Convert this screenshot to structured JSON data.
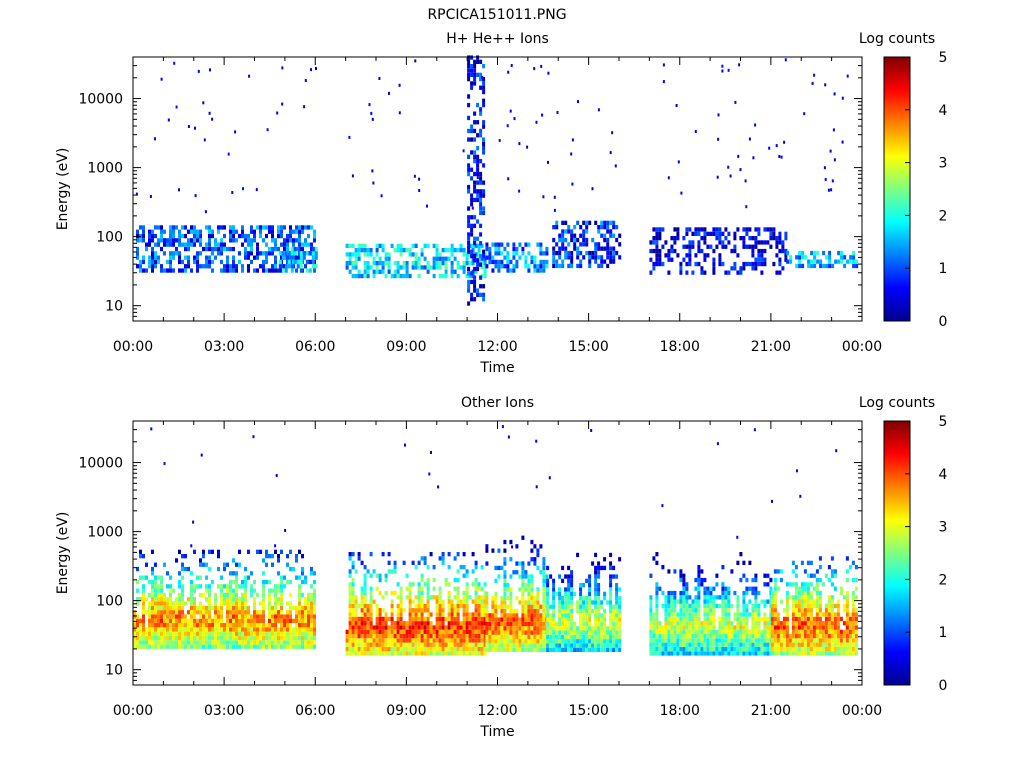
{
  "page_title": "RPCICA151011.PNG",
  "chart_data": [
    {
      "type": "heatmap",
      "title": "H+ He++ Ions",
      "xlabel": "Time",
      "ylabel": "Energy (eV)",
      "colorbar_label": "Log counts",
      "x_ticks": [
        "00:00",
        "03:00",
        "06:00",
        "09:00",
        "12:00",
        "15:00",
        "18:00",
        "21:00",
        "00:00"
      ],
      "xlim_hours": [
        0,
        24
      ],
      "y_scale": "log",
      "ylim_eV": [
        6,
        40000
      ],
      "y_ticks": [
        "10",
        "100",
        "1000",
        "10000"
      ],
      "colorbar_ticks": [
        "0",
        "1",
        "2",
        "3",
        "4",
        "5"
      ],
      "colorbar_range": [
        0,
        5
      ],
      "data_gaps_hours": [
        [
          6.0,
          7.0
        ],
        [
          16.0,
          17.0
        ]
      ],
      "segments": [
        {
          "t_start": 0.1,
          "t_end": 6.0,
          "e_low_eV": 30,
          "e_high_eV": 130,
          "log_counts_typical": 1.0
        },
        {
          "t_start": 4.8,
          "t_end": 6.0,
          "e_low_eV": 30,
          "e_high_eV": 70,
          "log_counts_typical": 1.6
        },
        {
          "t_start": 7.0,
          "t_end": 11.6,
          "e_low_eV": 25,
          "e_high_eV": 70,
          "log_counts_typical": 1.7
        },
        {
          "t_start": 11.0,
          "t_end": 11.5,
          "e_low_eV": 10,
          "e_high_eV": 40000,
          "log_counts_typical": 0.6
        },
        {
          "t_start": 11.6,
          "t_end": 13.6,
          "e_low_eV": 30,
          "e_high_eV": 80,
          "log_counts_typical": 1.3
        },
        {
          "t_start": 13.8,
          "t_end": 16.0,
          "e_low_eV": 35,
          "e_high_eV": 150,
          "log_counts_typical": 0.8
        },
        {
          "t_start": 17.0,
          "t_end": 21.5,
          "e_low_eV": 28,
          "e_high_eV": 120,
          "log_counts_typical": 0.4
        },
        {
          "t_start": 21.5,
          "t_end": 23.8,
          "e_low_eV": 35,
          "e_high_eV": 60,
          "log_counts_typical": 1.5
        }
      ]
    },
    {
      "type": "heatmap",
      "title": "Other Ions",
      "xlabel": "Time",
      "ylabel": "Energy (eV)",
      "colorbar_label": "Log counts",
      "x_ticks": [
        "00:00",
        "03:00",
        "06:00",
        "09:00",
        "12:00",
        "15:00",
        "18:00",
        "21:00",
        "00:00"
      ],
      "xlim_hours": [
        0,
        24
      ],
      "y_scale": "log",
      "ylim_eV": [
        6,
        40000
      ],
      "y_ticks": [
        "10",
        "100",
        "1000",
        "10000"
      ],
      "colorbar_ticks": [
        "0",
        "1",
        "2",
        "3",
        "4",
        "5"
      ],
      "colorbar_range": [
        0,
        5
      ],
      "data_gaps_hours": [
        [
          6.0,
          7.0
        ],
        [
          16.0,
          17.0
        ]
      ],
      "segments": [
        {
          "t_start": 0.0,
          "t_end": 6.0,
          "e_low_eV": 20,
          "e_high_eV": 500,
          "peak_eV": 50,
          "log_counts_peak": 3.8
        },
        {
          "t_start": 7.0,
          "t_end": 11.6,
          "e_low_eV": 16,
          "e_high_eV": 500,
          "peak_eV": 40,
          "log_counts_peak": 4.2
        },
        {
          "t_start": 11.6,
          "t_end": 13.6,
          "e_low_eV": 18,
          "e_high_eV": 800,
          "peak_eV": 45,
          "log_counts_peak": 4.0
        },
        {
          "t_start": 13.6,
          "t_end": 16.0,
          "e_low_eV": 18,
          "e_high_eV": 600,
          "peak_eV": 45,
          "log_counts_peak": 3.0
        },
        {
          "t_start": 17.0,
          "t_end": 21.0,
          "e_low_eV": 16,
          "e_high_eV": 500,
          "peak_eV": 40,
          "log_counts_peak": 3.0
        },
        {
          "t_start": 21.0,
          "t_end": 23.8,
          "e_low_eV": 16,
          "e_high_eV": 400,
          "peak_eV": 40,
          "log_counts_peak": 4.0
        }
      ]
    }
  ]
}
